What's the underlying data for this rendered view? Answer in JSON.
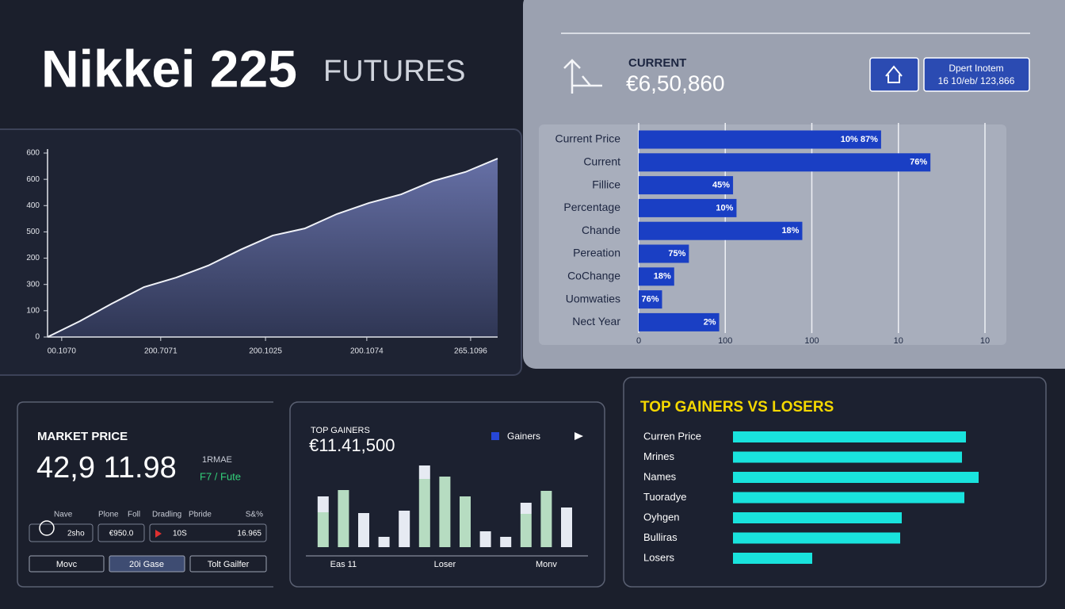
{
  "header": {
    "title": "Nikkei 225",
    "subtitle": "FUTURES"
  },
  "summary": {
    "label": "CURRENT",
    "value": "€6,50,860",
    "info": [
      "Dpert Inotem",
      "16 10/eb/ 123,866"
    ]
  },
  "market": {
    "title": "MARKET PRICE",
    "price": "42,9 11.98",
    "tag": "1RMAE",
    "change": "F7 / Fute",
    "columns": [
      "Nave",
      "Plone",
      "Foll",
      "Dradling",
      "Pbride",
      "S&%"
    ],
    "row": [
      "2sho",
      "€950.0",
      "10S",
      "16.965"
    ],
    "buttons": [
      "Movc",
      "20i Gase",
      "Tolt Gailfer"
    ]
  },
  "chart_data": [
    {
      "type": "area",
      "color": "#5a6494",
      "x": [
        0,
        1,
        2,
        3,
        4,
        5,
        6,
        7,
        8,
        9,
        10,
        11,
        12,
        13,
        14
      ],
      "values": [
        0,
        60,
        127,
        190,
        226,
        272,
        332,
        386,
        413,
        468,
        510,
        543,
        594,
        628,
        679
      ],
      "xlim": [
        0,
        14
      ],
      "ylim": [
        0,
        700
      ],
      "xticks": [
        {
          "value": 0.44,
          "label": "00.1070"
        },
        {
          "value": 3.52,
          "label": "200.7071"
        },
        {
          "value": 6.78,
          "label": "200.1025"
        },
        {
          "value": 9.93,
          "label": "200.1074"
        },
        {
          "value": 13.16,
          "label": "265.1096"
        }
      ],
      "yticks": [
        0,
        100,
        {
          "value": 200,
          "label": "300"
        },
        {
          "value": 300,
          "label": "200"
        },
        {
          "value": 400,
          "label": "500"
        },
        {
          "value": 500,
          "label": "400"
        },
        600,
        {
          "value": 700,
          "label": "600"
        }
      ]
    },
    {
      "type": "hbar",
      "color": "#1a3fc4",
      "grid": true,
      "categories": [
        "Current Price",
        "Current",
        "Fillice",
        "Percentage",
        "Chande",
        "Pereation",
        "CoChange",
        "Uomwaties",
        "Nect Year"
      ],
      "values": [
        280,
        337,
        109,
        113,
        189,
        58,
        41,
        27,
        93
      ],
      "bar_notes": [
        "10% 87%",
        "76%",
        "45%",
        "10%",
        "18%",
        "75%",
        "18%",
        "76%",
        "2%"
      ],
      "xlim": [
        0,
        400
      ],
      "xticks": [
        0,
        100,
        {
          "value": 200,
          "label": "100"
        },
        {
          "value": 300,
          "label": "10"
        },
        {
          "value": 400,
          "label": "10"
        }
      ]
    },
    {
      "type": "stacked-bar",
      "title": "TOP GAINERS",
      "subtitle": "€11.41,500",
      "legend": {
        "color": "#2747d8"
      },
      "categories": [
        null,
        "Eas 11",
        null,
        null,
        null,
        null,
        "Loser",
        null,
        null,
        null,
        null,
        "Monv",
        null
      ],
      "series": [
        {
          "name": "Gainers",
          "color": "#b6dcc1",
          "values": [
            44,
            72,
            0,
            0,
            0,
            86,
            89,
            64,
            0,
            0,
            42,
            71,
            0
          ]
        },
        {
          "color": "#e6eaf2",
          "values": [
            20,
            0,
            43,
            13,
            46,
            17,
            0,
            0,
            20,
            13,
            14,
            0,
            50
          ]
        }
      ],
      "ylim": [
        0,
        110
      ]
    },
    {
      "type": "hbar-plain",
      "title": "TOP GAINERS VS LOSERS",
      "color": "#19e3dd",
      "categories": [
        "Curren Price",
        "Mrines",
        "Names",
        "Tuoradye",
        "Oyhgen",
        "Bulliras",
        "Losers"
      ],
      "values": [
        294,
        289,
        310,
        292,
        213,
        211,
        100
      ],
      "xlim": [
        0,
        320
      ]
    }
  ]
}
